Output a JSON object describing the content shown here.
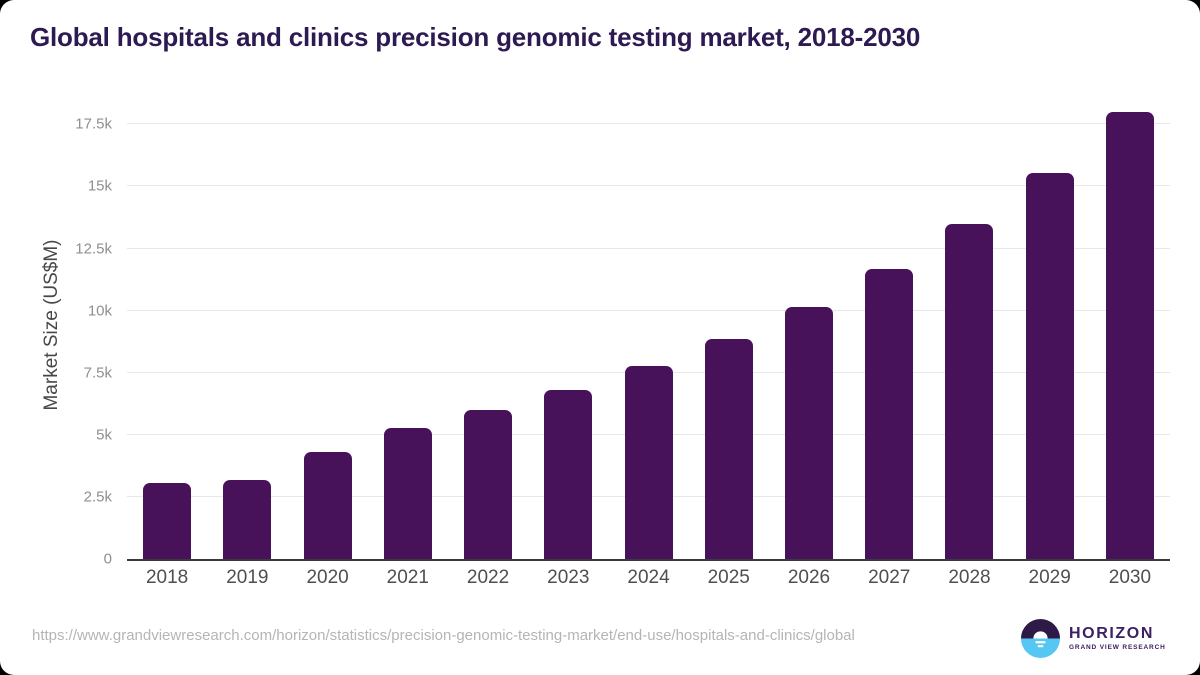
{
  "page": {
    "title": "Global hospitals and clinics precision genomic testing market, 2018-2030",
    "source_url": "https://www.grandviewresearch.com/horizon/statistics/precision-genomic-testing-market/end-use/hospitals-and-clinics/global"
  },
  "logo": {
    "name": "HORIZON",
    "subtitle": "GRAND VIEW RESEARCH"
  },
  "chart_data": {
    "type": "bar",
    "title": "Global hospitals and clinics precision genomic testing market, 2018-2030",
    "xlabel": "",
    "ylabel": "Market Size (US$M)",
    "unit": "US$M",
    "categories": [
      "2018",
      "2019",
      "2020",
      "2021",
      "2022",
      "2023",
      "2024",
      "2025",
      "2026",
      "2027",
      "2028",
      "2029",
      "2030"
    ],
    "values": [
      3050,
      3200,
      4300,
      5270,
      6000,
      6800,
      7770,
      8860,
      10140,
      11670,
      13480,
      15540,
      17990
    ],
    "ylim": [
      0,
      18600
    ],
    "yticks": [
      0,
      2500,
      5000,
      7500,
      10000,
      12500,
      15000,
      17500
    ],
    "ytick_labels": [
      "0",
      "2.5k",
      "5k",
      "7.5k",
      "10k",
      "12.5k",
      "15k",
      "17.5k"
    ],
    "grid": "horizontal",
    "legend": "none",
    "bar_color": "#471259"
  },
  "colors": {
    "title": "#2e1a52",
    "bar": "#471259",
    "axis-line": "#3a3a3a",
    "gridline": "#e8e8e8",
    "ytick": "#8f8f8f",
    "xtick": "#4f4f4f",
    "ylabel": "#474747",
    "url": "#b5b5b5",
    "logo-purple": "#2e1a47",
    "logo-blue": "#56c6f2",
    "logo-text": "#3b2064"
  }
}
